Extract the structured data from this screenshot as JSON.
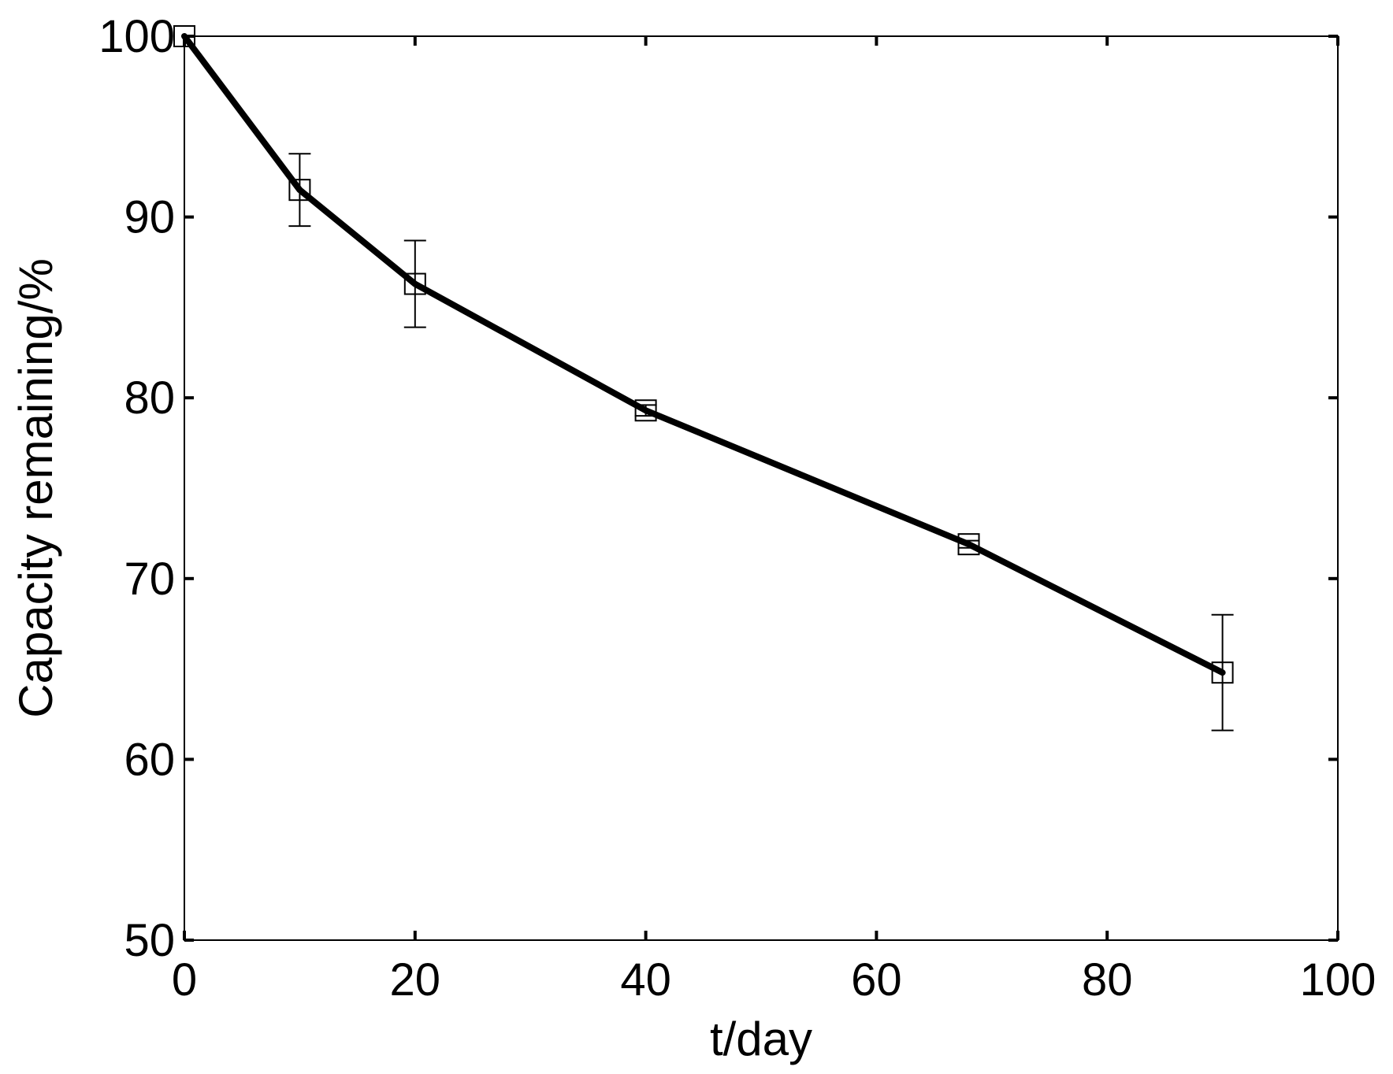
{
  "chart_data": {
    "type": "line",
    "title": "",
    "xlabel": "t/day",
    "ylabel": "Capacity remaining/%",
    "xlim": [
      0,
      100
    ],
    "ylim": [
      50,
      100
    ],
    "xticks": [
      0,
      20,
      40,
      60,
      80,
      100
    ],
    "yticks": [
      50,
      60,
      70,
      80,
      90,
      100
    ],
    "xtick_labels": [
      "0",
      "20",
      "40",
      "60",
      "80",
      "100"
    ],
    "ytick_labels": [
      "50",
      "60",
      "70",
      "80",
      "90",
      "100"
    ],
    "grid": false,
    "legend": "none",
    "marker": "square",
    "line_color": "#000000",
    "series": [
      {
        "x": [
          0,
          10,
          20,
          40,
          68,
          90
        ],
        "y": [
          100,
          91.5,
          86.3,
          79.3,
          71.9,
          64.8
        ],
        "error": [
          0,
          2.0,
          2.4,
          0.3,
          0.2,
          3.2
        ]
      }
    ]
  }
}
